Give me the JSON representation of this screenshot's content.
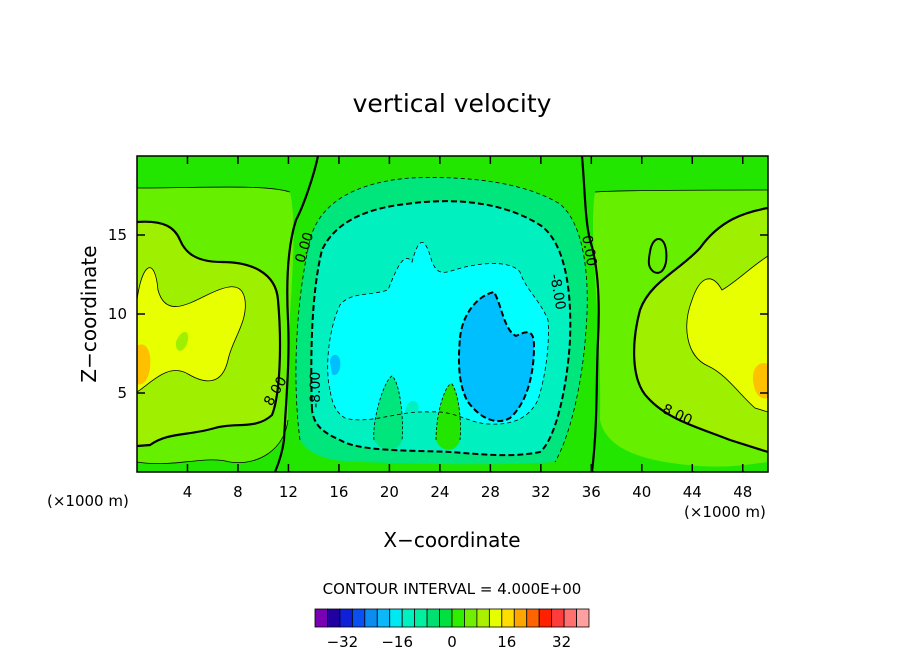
{
  "chart_data": {
    "type": "contour",
    "title": "vertical velocity",
    "xlabel": "X−coordinate",
    "ylabel": "Z−coordinate",
    "x_unit_left": "(×1000 m)",
    "x_unit_right": "(×1000 m)",
    "xlim": [
      0,
      50
    ],
    "ylim": [
      0,
      20
    ],
    "x_ticks": [
      4,
      8,
      12,
      16,
      20,
      24,
      28,
      32,
      36,
      40,
      44,
      48
    ],
    "y_ticks": [
      5,
      10,
      15
    ],
    "contour_interval_text": "CONTOUR INTERVAL = 4.000E+00",
    "contour_labels": [
      {
        "text": "0.00",
        "x": 13.3,
        "y": 14.2,
        "rot": -72
      },
      {
        "text": "0.00",
        "x": 35.8,
        "y": 14.0,
        "rot": 80
      },
      {
        "text": "8.00",
        "x": 11.0,
        "y": 5.1,
        "rot": -60
      },
      {
        "text": "8.00",
        "x": 42.8,
        "y": 3.6,
        "rot": 25
      },
      {
        "text": "-8.00",
        "x": 14.2,
        "y": 5.2,
        "rot": -90
      },
      {
        "text": "-8.00",
        "x": 33.3,
        "y": 11.4,
        "rot": 80
      }
    ],
    "colorbar": {
      "tick_labels": [
        "−32",
        "−16",
        "0",
        "16",
        "32"
      ],
      "tick_values": [
        -32,
        -16,
        0,
        16,
        32
      ],
      "range": [
        -40,
        40
      ],
      "colors": [
        "#7a00b4",
        "#2000a0",
        "#1020d8",
        "#0a50f0",
        "#0a8cf0",
        "#0cb8f8",
        "#00e8f0",
        "#00f0c0",
        "#00f0a0",
        "#00e070",
        "#00e040",
        "#30ee00",
        "#70f000",
        "#aaf000",
        "#e6ff00",
        "#ffdd00",
        "#ffa500",
        "#ff6400",
        "#ff2000",
        "#ff3c3c",
        "#ff7070",
        "#ffa0a0"
      ]
    },
    "field_shading": [
      {
        "level": 0,
        "fill": "#22e600",
        "region": "background"
      },
      {
        "level": 4,
        "fill": "#66f000",
        "region": "left/right envelopes"
      },
      {
        "level": 8,
        "fill": "#9ef000",
        "region": "left/right lobes"
      },
      {
        "level": 12,
        "fill": "#e8ff00",
        "region": "left/right cores"
      },
      {
        "level": 16,
        "fill": "#ffc000",
        "region": "edge maxima"
      },
      {
        "level": -4,
        "fill": "#00e67c",
        "region": "central downdraft"
      },
      {
        "level": -8,
        "fill": "#00f0c0",
        "region": "central downdraft"
      },
      {
        "level": -12,
        "fill": "#00ffff",
        "region": "central core"
      },
      {
        "level": -16,
        "fill": "#00bfff",
        "region": "central minimum"
      }
    ]
  }
}
